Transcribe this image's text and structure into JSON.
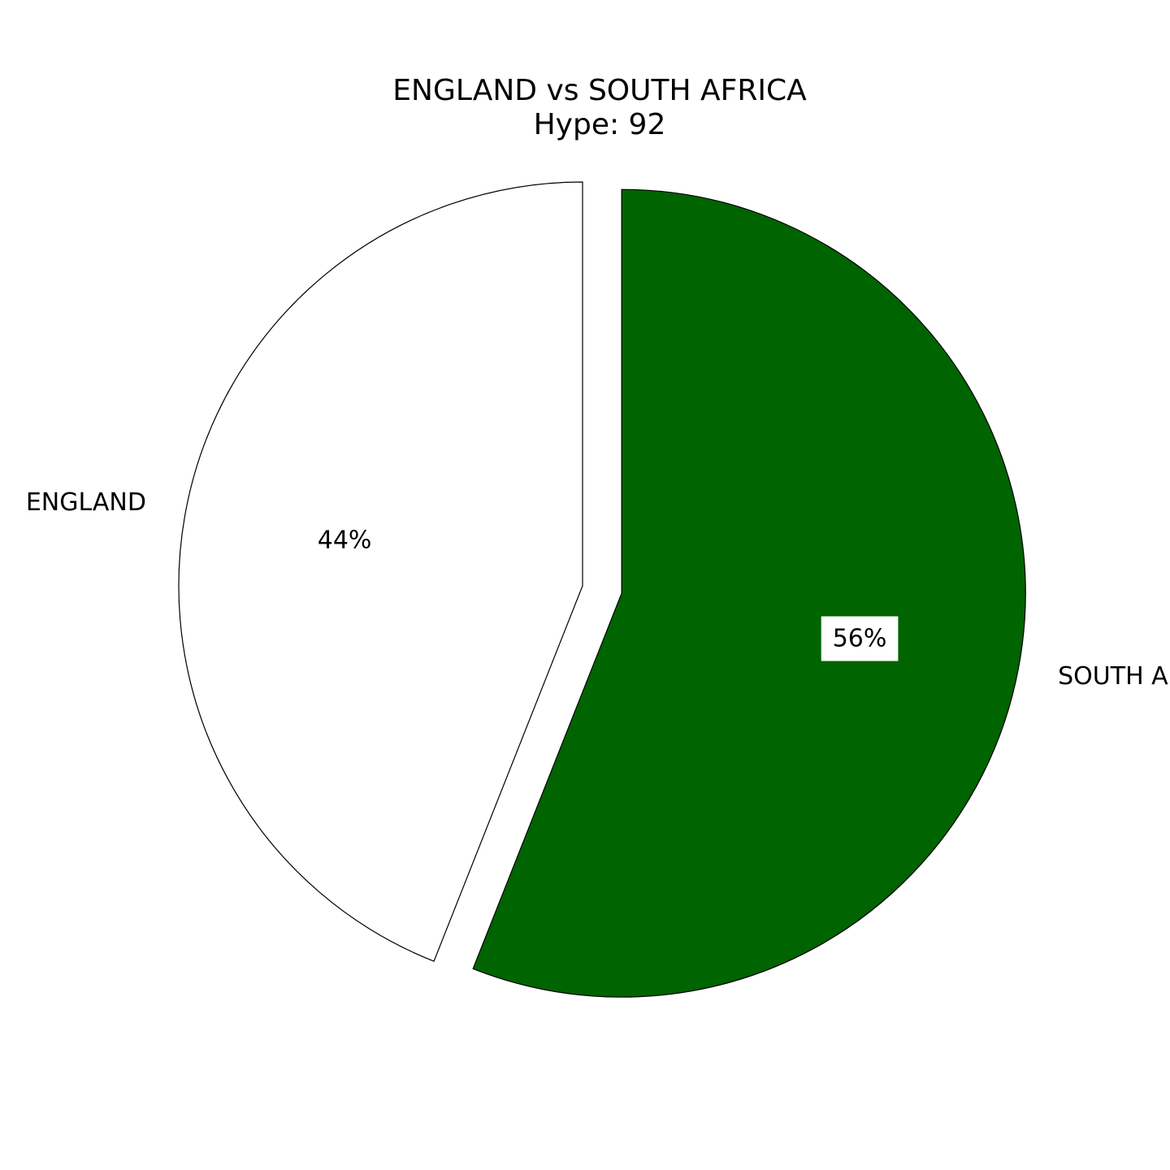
{
  "chart_data": {
    "type": "pie",
    "title": "ENGLAND vs SOUTH AFRICA",
    "subtitle": "Hype: 92",
    "categories": [
      "ENGLAND",
      "SOUTH AFRICA"
    ],
    "values": [
      44,
      56
    ],
    "value_labels": [
      "44%",
      "56%"
    ],
    "colors": [
      "#ffffff",
      "#006400"
    ],
    "edge_color": "#000000",
    "exploded": [
      false,
      true
    ],
    "start": "top",
    "direction": "counterclockwise",
    "legend": "none"
  }
}
